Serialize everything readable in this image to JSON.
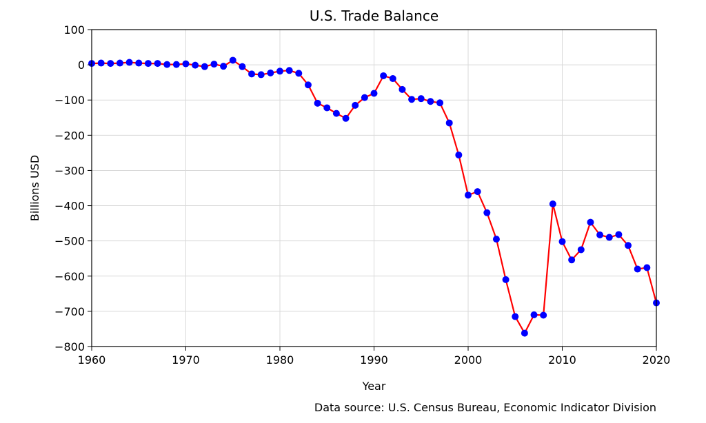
{
  "chart_data": {
    "type": "line",
    "title": "U.S. Trade Balance",
    "xlabel": "Year",
    "ylabel": "Billions USD",
    "source_note": "Data source: U.S. Census Bureau, Economic Indicator Division",
    "xlim": [
      1960,
      2020
    ],
    "ylim": [
      -800,
      100
    ],
    "x_ticks": [
      1960,
      1970,
      1980,
      1990,
      2000,
      2010,
      2020
    ],
    "y_ticks": [
      100,
      0,
      -100,
      -200,
      -300,
      -400,
      -500,
      -600,
      -700,
      -800
    ],
    "x_tick_labels": [
      "1960",
      "1970",
      "1980",
      "1990",
      "2000",
      "2010",
      "2020"
    ],
    "y_tick_labels": [
      "100",
      "0",
      "−100",
      "−200",
      "−300",
      "−400",
      "−500",
      "−600",
      "−700",
      "−800"
    ],
    "grid": true,
    "line_color": "#ff0000",
    "marker_color": "#0000ff",
    "series": [
      {
        "x": [
          1960,
          1961,
          1962,
          1963,
          1964,
          1965,
          1966,
          1967,
          1968,
          1969,
          1970,
          1971,
          1972,
          1973,
          1974,
          1975,
          1976,
          1977,
          1978,
          1979,
          1980,
          1981,
          1982,
          1983,
          1984,
          1985,
          1986,
          1987,
          1988,
          1989,
          1990,
          1991,
          1992,
          1993,
          1994,
          1995,
          1996,
          1997,
          1998,
          1999,
          2000,
          2001,
          2002,
          2003,
          2004,
          2005,
          2006,
          2007,
          2008,
          2009,
          2010,
          2011,
          2012,
          2013,
          2014,
          2015,
          2016,
          2017,
          2018,
          2019,
          2020
        ],
        "y": [
          4,
          5,
          4,
          5,
          7,
          5,
          4,
          4,
          1,
          1,
          3,
          -1,
          -5,
          2,
          -4,
          13,
          -5,
          -26,
          -28,
          -23,
          -18,
          -16,
          -24,
          -57,
          -109,
          -122,
          -138,
          -152,
          -115,
          -93,
          -81,
          -31,
          -39,
          -70,
          -98,
          -96,
          -104,
          -108,
          -165,
          -256,
          -370,
          -360,
          -420,
          -495,
          -610,
          -715,
          -762,
          -710,
          -711,
          -395,
          -502,
          -554,
          -525,
          -447,
          -483,
          -490,
          -482,
          -513,
          -580,
          -576,
          -676
        ]
      }
    ]
  }
}
